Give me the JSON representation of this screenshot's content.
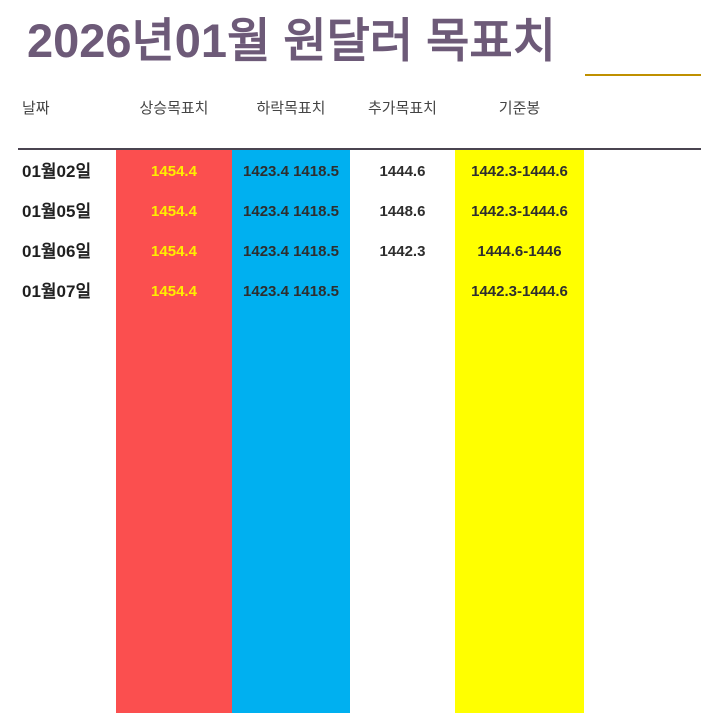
{
  "chart_data": {
    "type": "table",
    "title": "2026년01월 원달러 목표치",
    "columns": [
      "날짜",
      "상승목표치",
      "하락목표치",
      "추가목표치",
      "기준봉"
    ],
    "rows": [
      [
        "01월02일",
        "1454.4",
        "1423.4 1418.5",
        "1444.6",
        "1442.3-1444.6"
      ],
      [
        "01월05일",
        "1454.4",
        "1423.4 1418.5",
        "1448.6",
        "1442.3-1444.6"
      ],
      [
        "01월06일",
        "1454.4",
        "1423.4 1418.5",
        "1442.3",
        "1444.6-1446"
      ],
      [
        "01월07일",
        "1454.4",
        "1423.4 1418.5",
        "",
        "1442.3-1444.6"
      ]
    ],
    "layout": "column stripes run full height below header rule; no gridlines between rows"
  },
  "colors": {
    "title_text": "#6d5a78",
    "title_underline": "#bf9000",
    "header_text": "#444444",
    "header_rule": "#4a4450",
    "rise_column_bg": "#fb4f4f",
    "rise_column_text": "#ffee00",
    "fall_column_bg": "#00b0f0",
    "base_column_bg": "#ffff00",
    "cell_text": "#2e2e2e",
    "date_text": "#1f1f1f",
    "page_bg": "#ffffff"
  }
}
